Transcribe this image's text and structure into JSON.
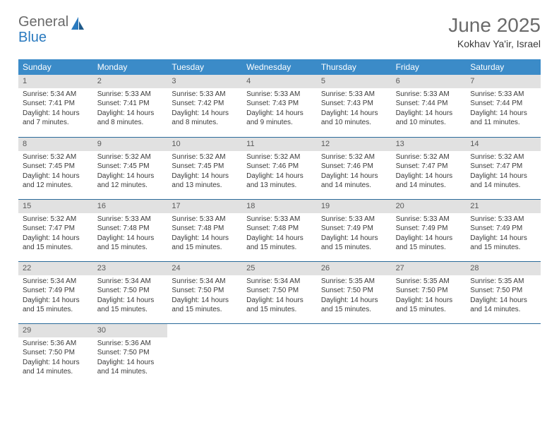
{
  "logo": {
    "text_a": "General",
    "text_b": "Blue"
  },
  "title": "June 2025",
  "subtitle": "Kokhav Ya'ir, Israel",
  "colors": {
    "header_bg": "#3b8bc8",
    "header_text": "#ffffff",
    "daynum_bg": "#e1e1e1",
    "daynum_text": "#5a5a5a",
    "week_border": "#2a6a9a",
    "body_text": "#3a3a3a",
    "title_text": "#6a6a6a",
    "logo_blue": "#2a7abf",
    "page_bg": "#ffffff"
  },
  "typography": {
    "title_fontsize": 28,
    "subtitle_fontsize": 14,
    "weekday_fontsize": 12,
    "daynum_fontsize": 11,
    "body_fontsize": 10
  },
  "weekdays": [
    "Sunday",
    "Monday",
    "Tuesday",
    "Wednesday",
    "Thursday",
    "Friday",
    "Saturday"
  ],
  "weeks": [
    [
      {
        "n": "1",
        "sr": "5:34 AM",
        "ss": "7:41 PM",
        "dl": "14 hours and 7 minutes."
      },
      {
        "n": "2",
        "sr": "5:33 AM",
        "ss": "7:41 PM",
        "dl": "14 hours and 8 minutes."
      },
      {
        "n": "3",
        "sr": "5:33 AM",
        "ss": "7:42 PM",
        "dl": "14 hours and 8 minutes."
      },
      {
        "n": "4",
        "sr": "5:33 AM",
        "ss": "7:43 PM",
        "dl": "14 hours and 9 minutes."
      },
      {
        "n": "5",
        "sr": "5:33 AM",
        "ss": "7:43 PM",
        "dl": "14 hours and 10 minutes."
      },
      {
        "n": "6",
        "sr": "5:33 AM",
        "ss": "7:44 PM",
        "dl": "14 hours and 10 minutes."
      },
      {
        "n": "7",
        "sr": "5:33 AM",
        "ss": "7:44 PM",
        "dl": "14 hours and 11 minutes."
      }
    ],
    [
      {
        "n": "8",
        "sr": "5:32 AM",
        "ss": "7:45 PM",
        "dl": "14 hours and 12 minutes."
      },
      {
        "n": "9",
        "sr": "5:32 AM",
        "ss": "7:45 PM",
        "dl": "14 hours and 12 minutes."
      },
      {
        "n": "10",
        "sr": "5:32 AM",
        "ss": "7:45 PM",
        "dl": "14 hours and 13 minutes."
      },
      {
        "n": "11",
        "sr": "5:32 AM",
        "ss": "7:46 PM",
        "dl": "14 hours and 13 minutes."
      },
      {
        "n": "12",
        "sr": "5:32 AM",
        "ss": "7:46 PM",
        "dl": "14 hours and 14 minutes."
      },
      {
        "n": "13",
        "sr": "5:32 AM",
        "ss": "7:47 PM",
        "dl": "14 hours and 14 minutes."
      },
      {
        "n": "14",
        "sr": "5:32 AM",
        "ss": "7:47 PM",
        "dl": "14 hours and 14 minutes."
      }
    ],
    [
      {
        "n": "15",
        "sr": "5:32 AM",
        "ss": "7:47 PM",
        "dl": "14 hours and 15 minutes."
      },
      {
        "n": "16",
        "sr": "5:33 AM",
        "ss": "7:48 PM",
        "dl": "14 hours and 15 minutes."
      },
      {
        "n": "17",
        "sr": "5:33 AM",
        "ss": "7:48 PM",
        "dl": "14 hours and 15 minutes."
      },
      {
        "n": "18",
        "sr": "5:33 AM",
        "ss": "7:48 PM",
        "dl": "14 hours and 15 minutes."
      },
      {
        "n": "19",
        "sr": "5:33 AM",
        "ss": "7:49 PM",
        "dl": "14 hours and 15 minutes."
      },
      {
        "n": "20",
        "sr": "5:33 AM",
        "ss": "7:49 PM",
        "dl": "14 hours and 15 minutes."
      },
      {
        "n": "21",
        "sr": "5:33 AM",
        "ss": "7:49 PM",
        "dl": "14 hours and 15 minutes."
      }
    ],
    [
      {
        "n": "22",
        "sr": "5:34 AM",
        "ss": "7:49 PM",
        "dl": "14 hours and 15 minutes."
      },
      {
        "n": "23",
        "sr": "5:34 AM",
        "ss": "7:50 PM",
        "dl": "14 hours and 15 minutes."
      },
      {
        "n": "24",
        "sr": "5:34 AM",
        "ss": "7:50 PM",
        "dl": "14 hours and 15 minutes."
      },
      {
        "n": "25",
        "sr": "5:34 AM",
        "ss": "7:50 PM",
        "dl": "14 hours and 15 minutes."
      },
      {
        "n": "26",
        "sr": "5:35 AM",
        "ss": "7:50 PM",
        "dl": "14 hours and 15 minutes."
      },
      {
        "n": "27",
        "sr": "5:35 AM",
        "ss": "7:50 PM",
        "dl": "14 hours and 15 minutes."
      },
      {
        "n": "28",
        "sr": "5:35 AM",
        "ss": "7:50 PM",
        "dl": "14 hours and 14 minutes."
      }
    ],
    [
      {
        "n": "29",
        "sr": "5:36 AM",
        "ss": "7:50 PM",
        "dl": "14 hours and 14 minutes."
      },
      {
        "n": "30",
        "sr": "5:36 AM",
        "ss": "7:50 PM",
        "dl": "14 hours and 14 minutes."
      },
      null,
      null,
      null,
      null,
      null
    ]
  ],
  "labels": {
    "sunrise": "Sunrise:",
    "sunset": "Sunset:",
    "daylight": "Daylight:"
  }
}
